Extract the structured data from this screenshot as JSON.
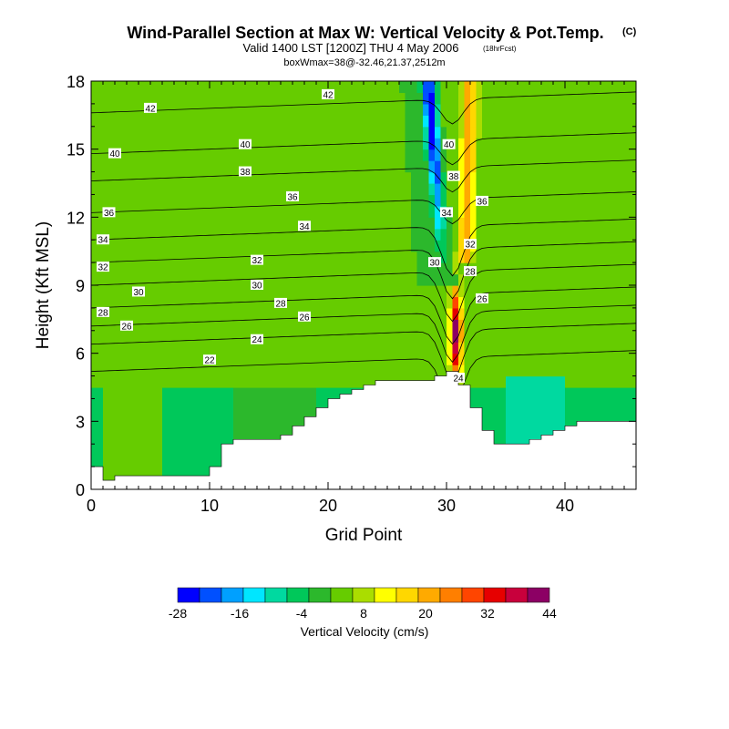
{
  "title": "Wind-Parallel Section at Max W: Vertical Velocity & Pot.Temp.",
  "title_unit": "(C)",
  "subtitle": "Valid 1400 LST [1200Z] THU 4 May 2006",
  "subtitle_note": "(18hrFcst)",
  "box_info": "boxWmax=38@-32.46,21.37,2512m",
  "chart_data": {
    "type": "heatmap",
    "xlabel": "Grid Point",
    "ylabel": "Height (Kft MSL)",
    "xlim": [
      0,
      46
    ],
    "ylim": [
      0,
      18
    ],
    "x_ticks": [
      0,
      10,
      20,
      30,
      40
    ],
    "y_ticks": [
      0,
      3,
      6,
      9,
      12,
      15,
      18
    ],
    "colorbar": {
      "title": "Vertical Velocity (cm/s)",
      "levels": [
        -28,
        -24,
        -20,
        -16,
        -12,
        -8,
        -4,
        0,
        4,
        8,
        12,
        16,
        20,
        24,
        28,
        32,
        36,
        40,
        44
      ],
      "tick_labels": [
        "-28",
        "-16",
        "-4",
        "8",
        "20",
        "32",
        "44"
      ],
      "colors": [
        "#0000ff",
        "#0050ff",
        "#00a0ff",
        "#00e6ff",
        "#00d9a0",
        "#00c85a",
        "#2cb82c",
        "#66cc00",
        "#aadd00",
        "#ffff00",
        "#ffd700",
        "#ffaa00",
        "#ff7f00",
        "#ff4500",
        "#e60000",
        "#c8003c",
        "#8c0064"
      ]
    },
    "terrain_height_kft": [
      1.0,
      0.4,
      0.6,
      0.6,
      0.6,
      0.6,
      0.6,
      0.6,
      0.6,
      0.6,
      1.0,
      2.0,
      2.2,
      2.2,
      2.2,
      2.2,
      2.4,
      2.8,
      3.2,
      3.6,
      4.0,
      4.2,
      4.4,
      4.6,
      4.8,
      4.8,
      4.8,
      4.8,
      4.8,
      5.0,
      5.2,
      4.6,
      3.6,
      2.6,
      2.0,
      2.0,
      2.0,
      2.2,
      2.4,
      2.6,
      2.8,
      3.0,
      3.0,
      3.0,
      3.0,
      3.0,
      3.0
    ],
    "theta_contours_C": [
      22,
      24,
      26,
      28,
      30,
      32,
      34,
      36,
      38,
      40,
      42
    ],
    "max_vertical_velocity_cms": 38,
    "max_location_grid_point": 31,
    "contour_labels": [
      {
        "text": "42",
        "x": 20.0,
        "y": 17.4
      },
      {
        "text": "42",
        "x": 5.0,
        "y": 16.8
      },
      {
        "text": "40",
        "x": 2.0,
        "y": 14.8
      },
      {
        "text": "40",
        "x": 13.0,
        "y": 15.2
      },
      {
        "text": "40",
        "x": 30.2,
        "y": 15.2
      },
      {
        "text": "38",
        "x": 13.0,
        "y": 14.0
      },
      {
        "text": "38",
        "x": 30.6,
        "y": 13.8
      },
      {
        "text": "36",
        "x": 1.5,
        "y": 12.2
      },
      {
        "text": "36",
        "x": 17.0,
        "y": 12.9
      },
      {
        "text": "36",
        "x": 33.0,
        "y": 12.7
      },
      {
        "text": "34",
        "x": 1.0,
        "y": 11.0
      },
      {
        "text": "34",
        "x": 18.0,
        "y": 11.6
      },
      {
        "text": "34",
        "x": 30.0,
        "y": 12.2
      },
      {
        "text": "32",
        "x": 1.0,
        "y": 9.8
      },
      {
        "text": "32",
        "x": 14.0,
        "y": 10.1
      },
      {
        "text": "32",
        "x": 32.0,
        "y": 10.8
      },
      {
        "text": "30",
        "x": 4.0,
        "y": 8.7
      },
      {
        "text": "30",
        "x": 14.0,
        "y": 9.0
      },
      {
        "text": "30",
        "x": 29.0,
        "y": 10.0
      },
      {
        "text": "28",
        "x": 1.0,
        "y": 7.8
      },
      {
        "text": "28",
        "x": 16.0,
        "y": 8.2
      },
      {
        "text": "28",
        "x": 32.0,
        "y": 9.6
      },
      {
        "text": "26",
        "x": 3.0,
        "y": 7.2
      },
      {
        "text": "26",
        "x": 18.0,
        "y": 7.6
      },
      {
        "text": "26",
        "x": 33.0,
        "y": 8.4
      },
      {
        "text": "24",
        "x": 14.0,
        "y": 6.6
      },
      {
        "text": "24",
        "x": 31.0,
        "y": 4.9
      },
      {
        "text": "22",
        "x": 10.0,
        "y": 5.7
      }
    ]
  }
}
